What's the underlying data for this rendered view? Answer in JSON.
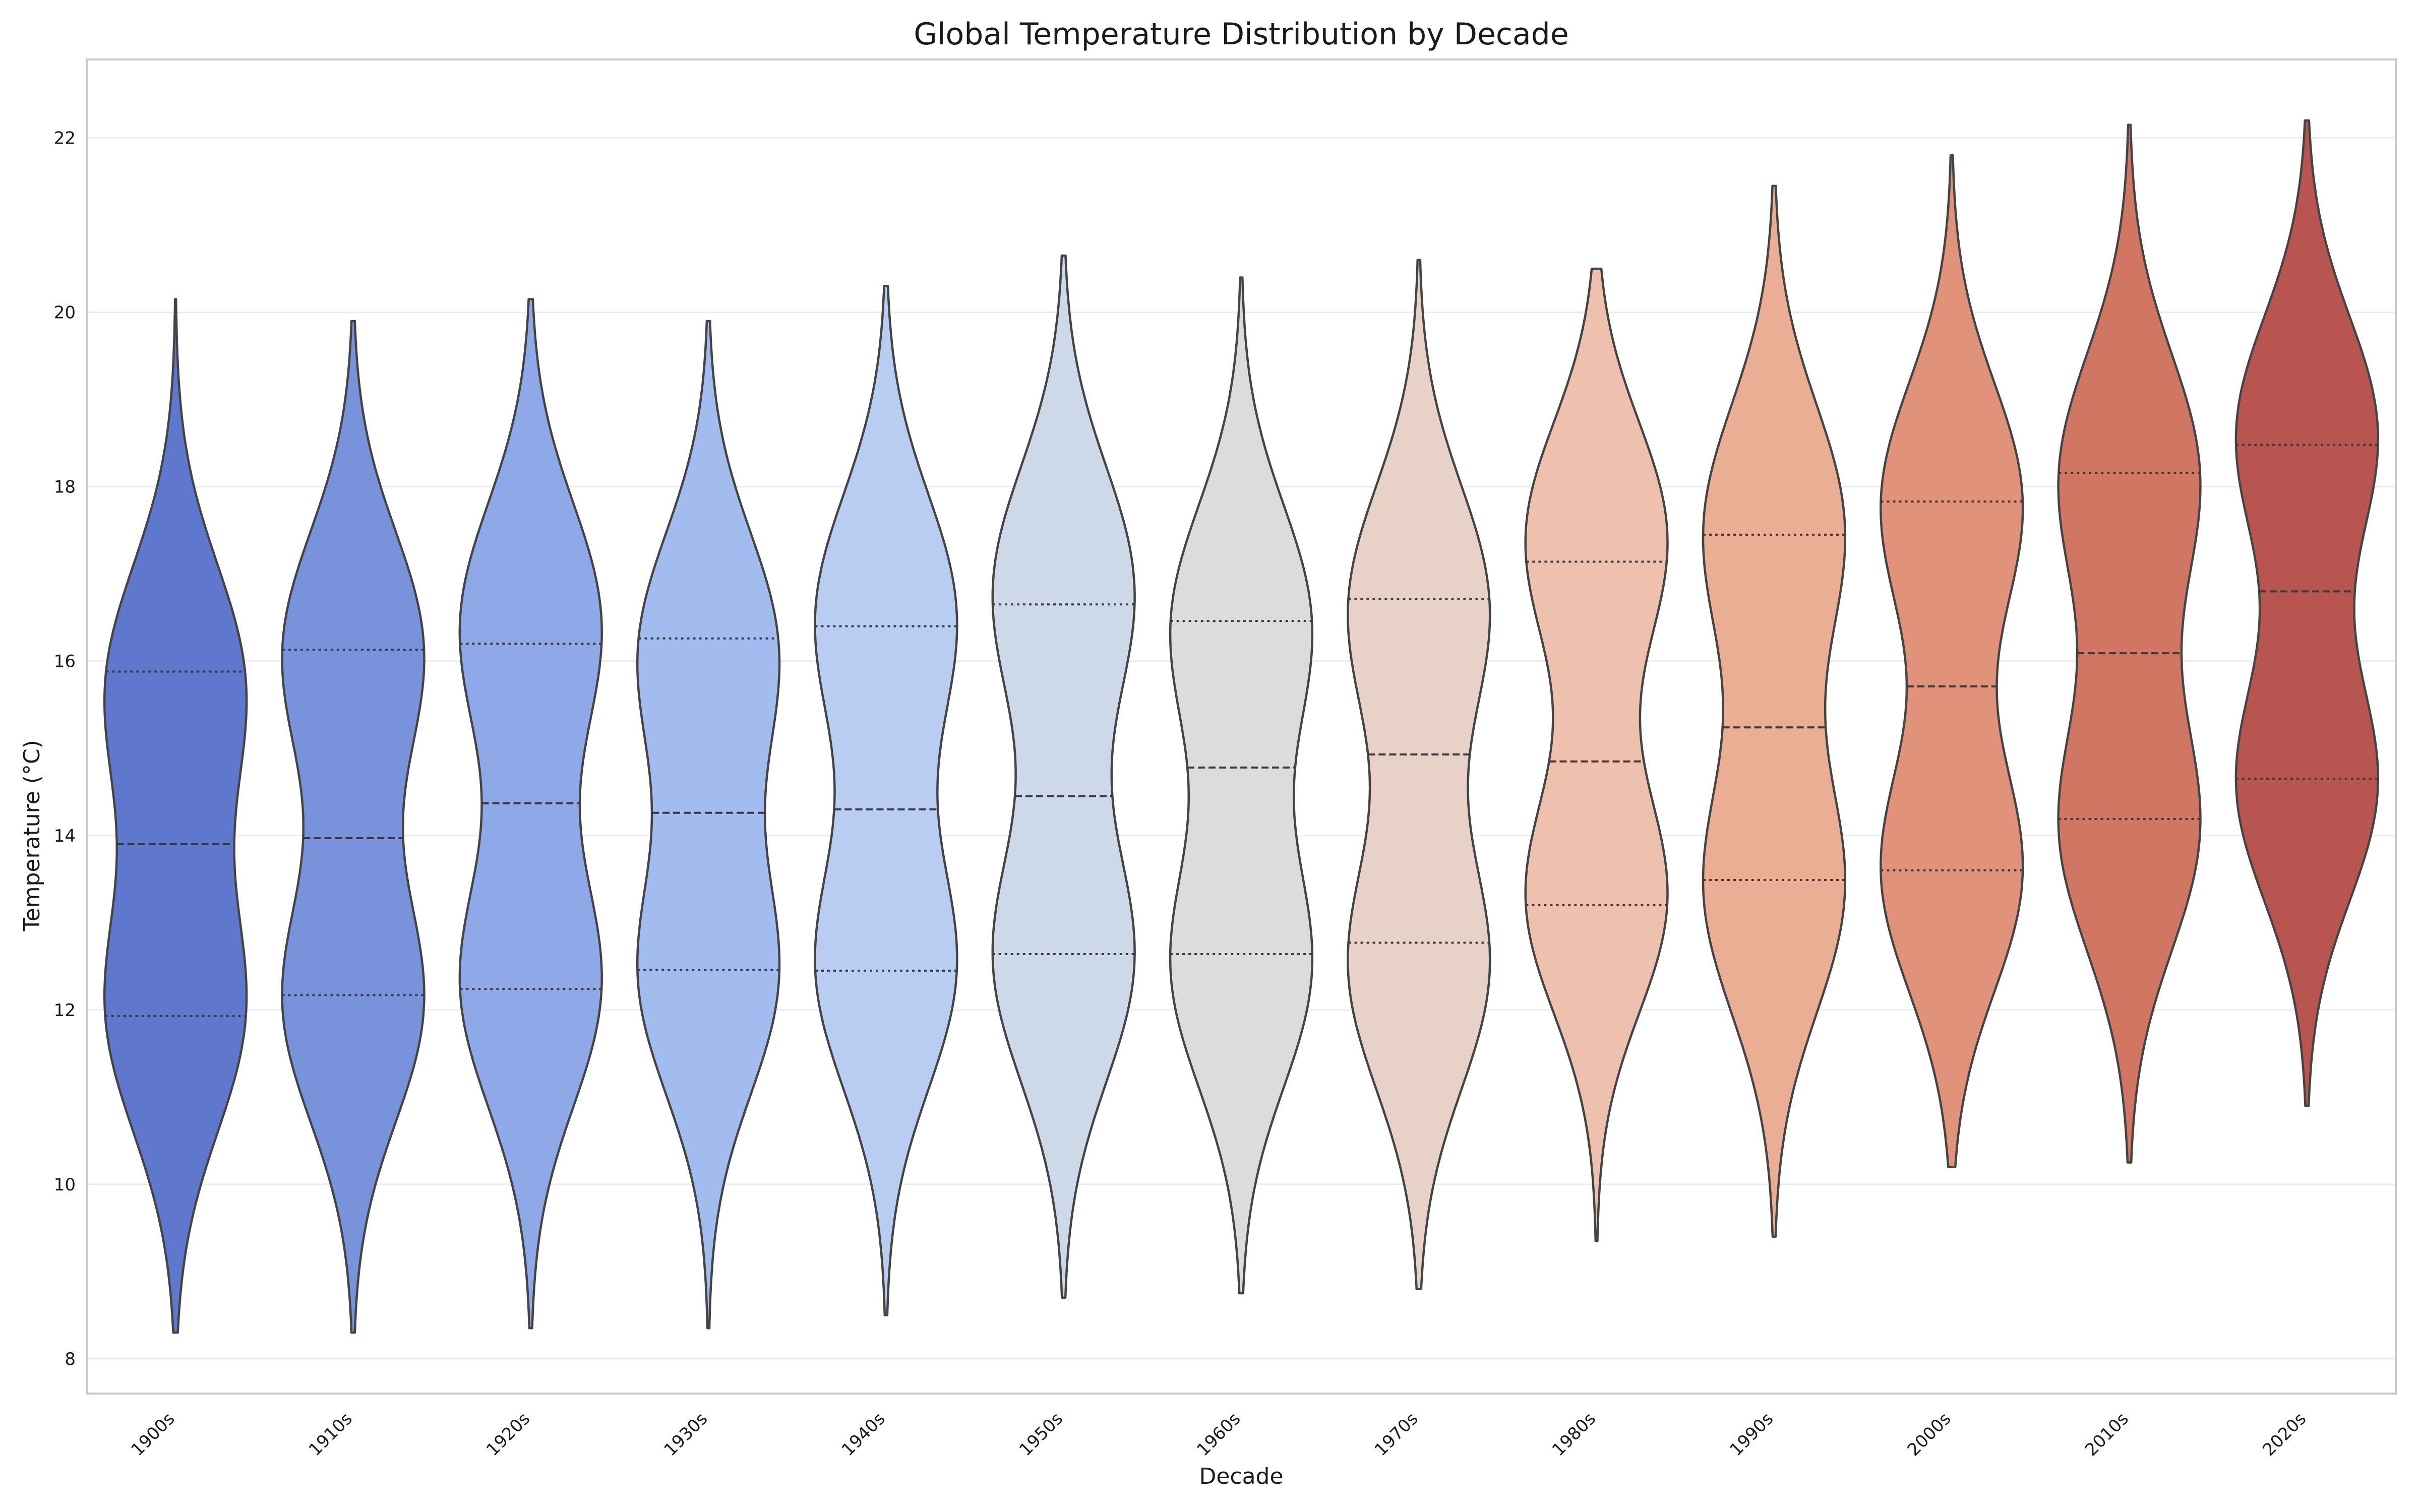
{
  "chart_data": {
    "type": "violin",
    "title": "Global Temperature Distribution by Decade",
    "xlabel": "Decade",
    "ylabel": "Temperature (°C)",
    "ylim": [
      7.6,
      22.9
    ],
    "yticks": [
      8,
      10,
      12,
      14,
      16,
      18,
      20,
      22
    ],
    "grid": true,
    "categories": [
      "1900s",
      "1910s",
      "1920s",
      "1930s",
      "1940s",
      "1950s",
      "1960s",
      "1970s",
      "1980s",
      "1990s",
      "2000s",
      "2010s",
      "2020s"
    ],
    "series": [
      {
        "category": "1900s",
        "color": "#5f77cc",
        "min": 8.3,
        "max": 20.15,
        "q1": 11.93,
        "median": 13.9,
        "q3": 15.88,
        "modes": [
          12.0,
          15.7
        ]
      },
      {
        "category": "1910s",
        "color": "#7892dc",
        "min": 8.3,
        "max": 19.9,
        "q1": 12.17,
        "median": 13.97,
        "q3": 16.13,
        "modes": [
          12.1,
          16.1
        ]
      },
      {
        "category": "1920s",
        "color": "#8fa9e8",
        "min": 8.35,
        "max": 20.15,
        "q1": 12.24,
        "median": 14.37,
        "q3": 16.2,
        "modes": [
          12.3,
          16.4
        ]
      },
      {
        "category": "1930s",
        "color": "#a3bcf0",
        "min": 8.35,
        "max": 19.9,
        "q1": 12.46,
        "median": 14.26,
        "q3": 16.26,
        "modes": [
          12.4,
          16.1
        ]
      },
      {
        "category": "1940s",
        "color": "#b8cdf1",
        "min": 8.5,
        "max": 20.3,
        "q1": 12.45,
        "median": 14.3,
        "q3": 16.4,
        "modes": [
          12.5,
          16.5
        ]
      },
      {
        "category": "1950s",
        "color": "#cdd8e9",
        "min": 8.7,
        "max": 20.65,
        "q1": 12.64,
        "median": 14.45,
        "q3": 16.65,
        "modes": [
          12.6,
          16.8
        ]
      },
      {
        "category": "1960s",
        "color": "#dcdcdc",
        "min": 8.75,
        "max": 20.4,
        "q1": 12.64,
        "median": 14.78,
        "q3": 16.46,
        "modes": [
          12.5,
          16.4
        ]
      },
      {
        "category": "1970s",
        "color": "#e8d2c8",
        "min": 8.8,
        "max": 20.6,
        "q1": 12.77,
        "median": 14.93,
        "q3": 16.71,
        "modes": [
          12.5,
          16.6
        ]
      },
      {
        "category": "1980s",
        "color": "#edc1ae",
        "min": 9.35,
        "max": 20.5,
        "q1": 13.2,
        "median": 14.85,
        "q3": 17.14,
        "modes": [
          13.3,
          17.4
        ]
      },
      {
        "category": "1990s",
        "color": "#eaae94",
        "min": 9.4,
        "max": 21.45,
        "q1": 13.49,
        "median": 15.24,
        "q3": 17.45,
        "modes": [
          13.4,
          17.5
        ]
      },
      {
        "category": "2000s",
        "color": "#e0927a",
        "min": 10.2,
        "max": 21.8,
        "q1": 13.6,
        "median": 15.71,
        "q3": 17.83,
        "modes": [
          13.6,
          17.8
        ]
      },
      {
        "category": "2010s",
        "color": "#d17663",
        "min": 10.25,
        "max": 22.15,
        "q1": 14.19,
        "median": 16.09,
        "q3": 18.16,
        "modes": [
          14.1,
          18.1
        ]
      },
      {
        "category": "2020s",
        "color": "#b85550",
        "min": 10.9,
        "max": 22.2,
        "q1": 14.65,
        "median": 16.8,
        "q3": 18.48,
        "modes": [
          14.6,
          18.6
        ]
      }
    ]
  }
}
